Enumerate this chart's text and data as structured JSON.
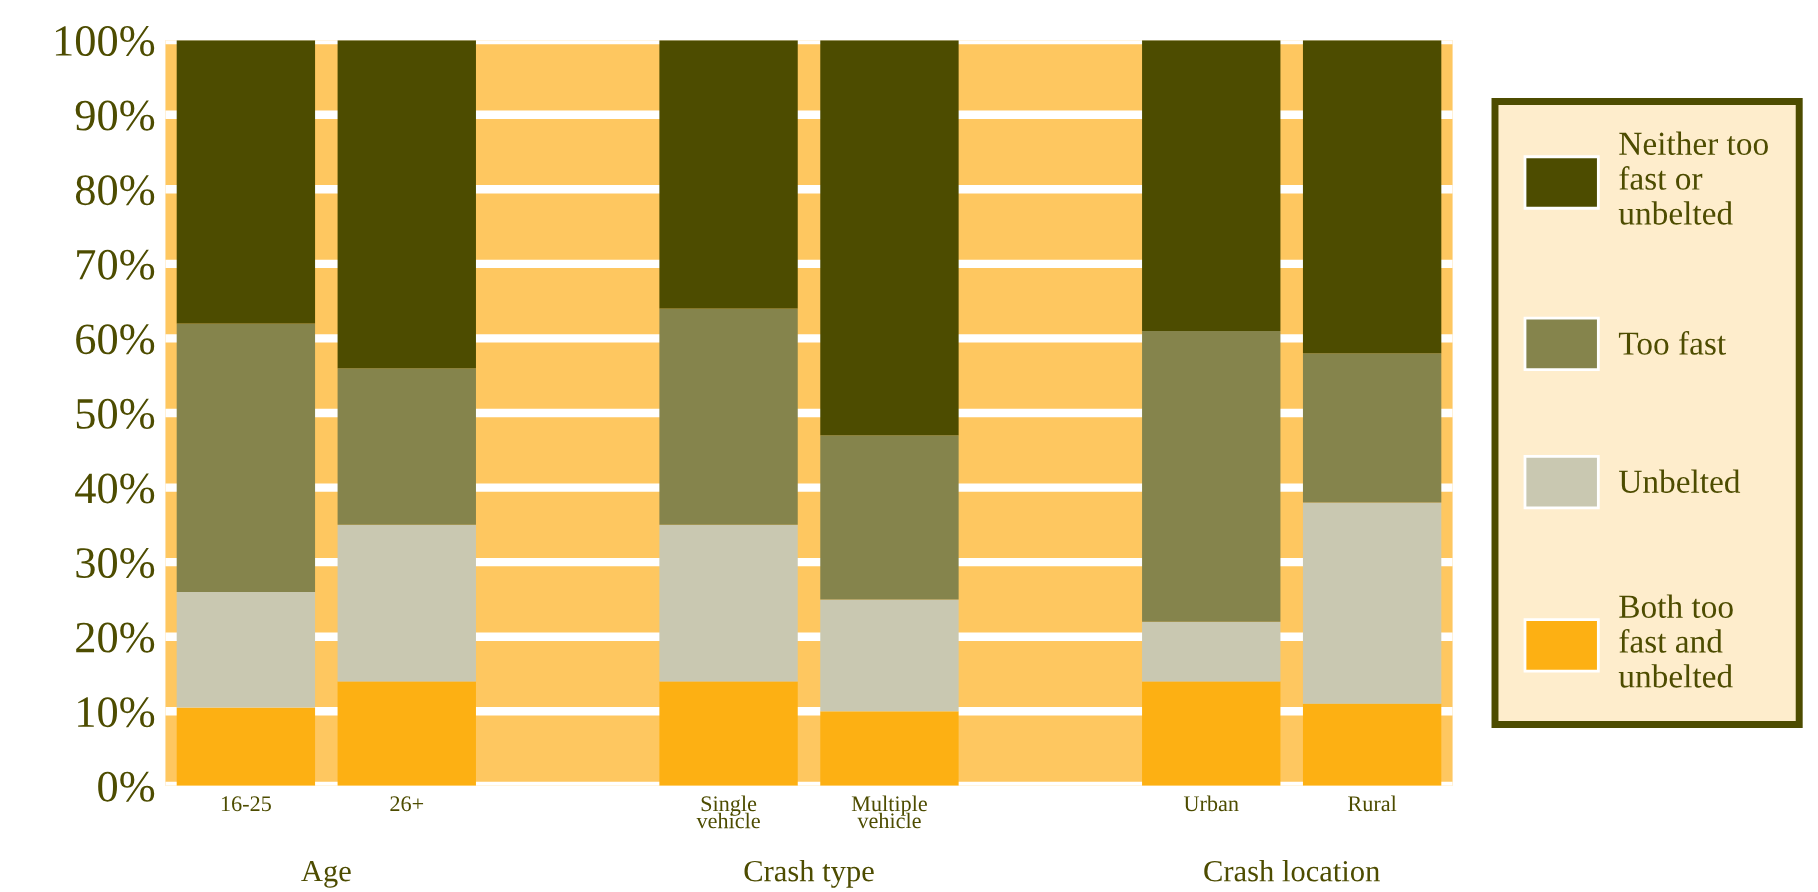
{
  "chart_data": {
    "type": "bar",
    "stacked": true,
    "categories": [
      "16-25",
      "26+",
      null,
      "Single\nvehicle",
      "Multiple\nvehicle",
      null,
      "Urban",
      "Rural"
    ],
    "series": [
      {
        "name": "Both too\nfast and\nunbelted",
        "color": "#fdb013",
        "values": [
          10.5,
          14,
          null,
          14,
          10,
          null,
          14,
          11
        ]
      },
      {
        "name": "Unbelted",
        "color": "#c9c8b1",
        "values": [
          15.5,
          21,
          null,
          21,
          15,
          null,
          8,
          27
        ]
      },
      {
        "name": "Too fast",
        "color": "#85844c",
        "values": [
          36,
          21,
          null,
          29,
          22,
          null,
          39,
          20
        ]
      },
      {
        "name": "Neither too\nfast or\nunbelted",
        "color": "#4d4c00",
        "values": [
          38,
          44,
          null,
          36,
          53,
          null,
          39,
          42
        ]
      }
    ],
    "ylim": [
      0,
      100
    ],
    "yticks": [
      {
        "value": 0,
        "label": "0%"
      },
      {
        "value": 10,
        "label": "10%"
      },
      {
        "value": 20,
        "label": "20%"
      },
      {
        "value": 30,
        "label": "30%"
      },
      {
        "value": 40,
        "label": "40%"
      },
      {
        "value": 50,
        "label": "50%"
      },
      {
        "value": 60,
        "label": "60%"
      },
      {
        "value": 70,
        "label": "70%"
      },
      {
        "value": 80,
        "label": "80%"
      },
      {
        "value": 90,
        "label": "90%"
      },
      {
        "value": 100,
        "label": "100%"
      }
    ],
    "annotations": [
      "Age",
      "Crash type",
      "Crash location"
    ],
    "grid": "y",
    "legend": "right"
  }
}
